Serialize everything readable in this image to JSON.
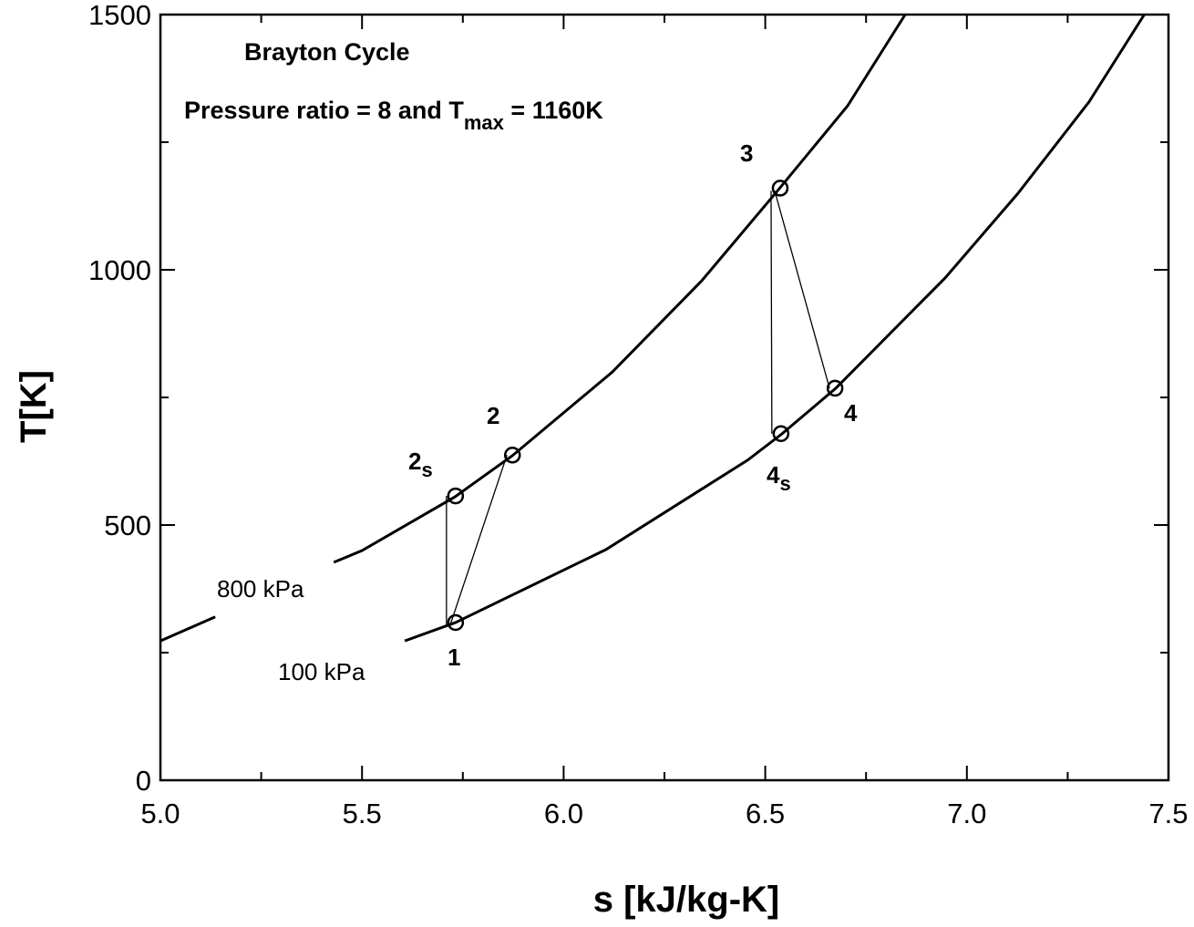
{
  "chart_data": {
    "type": "line",
    "title": "Brayton Cycle",
    "subtitle_parts": {
      "prefix": "Pressure ratio = 8 and T",
      "sub": "max",
      "suffix": " = 1160K"
    },
    "xlabel": "s [kJ/kg-K]",
    "ylabel": "T[K]",
    "xlim": [
      5.0,
      7.5
    ],
    "ylim": [
      0,
      1500
    ],
    "x_ticks": [
      "5.0",
      "5.5",
      "6.0",
      "6.5",
      "7.0",
      "7.5"
    ],
    "y_ticks": [
      "0",
      "500",
      "1000",
      "1500"
    ],
    "grid": false,
    "series": [
      {
        "name": "800 kPa",
        "x": [
          5.0,
          5.136,
          5.43,
          5.5,
          5.73,
          5.873,
          6.121,
          6.343,
          6.537,
          6.704,
          6.847
        ],
        "y": [
          273,
          320,
          427,
          450,
          555,
          636,
          800,
          979,
          1161,
          1321,
          1500
        ]
      },
      {
        "name": "100 kPa",
        "x": [
          5.606,
          5.732,
          6.105,
          6.456,
          6.542,
          6.675,
          6.946,
          7.127,
          7.303,
          7.44
        ],
        "y": [
          273,
          309,
          452,
          627,
          679,
          768,
          984,
          1150,
          1329,
          1500
        ]
      }
    ],
    "state_points": [
      {
        "label": "1",
        "sub": "",
        "s": 5.732,
        "T": 309
      },
      {
        "label": "2",
        "sub": "s",
        "s": 5.732,
        "T": 557
      },
      {
        "label": "2",
        "sub": "",
        "s": 5.873,
        "T": 637
      },
      {
        "label": "3",
        "sub": "",
        "s": 6.537,
        "T": 1160
      },
      {
        "label": "4",
        "sub": "s",
        "s": 6.539,
        "T": 679
      },
      {
        "label": "4",
        "sub": "",
        "s": 6.673,
        "T": 768
      }
    ],
    "process_lines": [
      [
        0,
        1
      ],
      [
        0,
        2
      ],
      [
        3,
        4
      ],
      [
        3,
        5
      ]
    ]
  }
}
